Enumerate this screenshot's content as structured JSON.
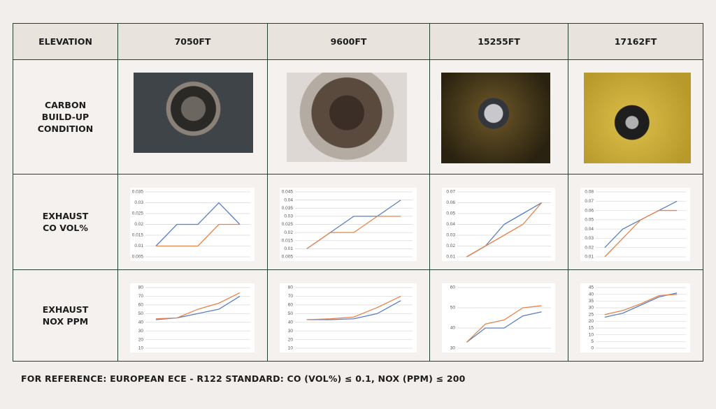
{
  "table": {
    "header": [
      "ELEVATION",
      "7050FT",
      "9600FT",
      "15255FT",
      "17162FT"
    ],
    "row_labels": [
      "CARBON BUILD-UP CONDITION",
      "EXHAUST CO VOL%",
      "EXHAUST NOX PPM"
    ]
  },
  "chart_data": [
    {
      "type": "line",
      "categories": [
        null,
        null,
        null,
        null,
        null
      ],
      "ylim": [
        0.005,
        0.035
      ],
      "yticks": [
        0.005,
        0.01,
        0.015,
        0.02,
        0.025,
        0.03,
        0.035
      ],
      "grid": true,
      "series": [
        {
          "color": "#5b7fc0",
          "values": [
            0.01,
            0.02,
            0.02,
            0.03,
            0.02
          ]
        },
        {
          "color": "#e6834a",
          "values": [
            0.01,
            0.01,
            0.01,
            0.02,
            0.02
          ]
        }
      ]
    },
    {
      "type": "line",
      "categories": [
        null,
        null,
        null,
        null,
        null
      ],
      "ylim": [
        0.005,
        0.045
      ],
      "yticks": [
        0.005,
        0.01,
        0.015,
        0.02,
        0.025,
        0.03,
        0.035,
        0.04,
        0.045
      ],
      "grid": true,
      "series": [
        {
          "color": "#5b7fc0",
          "values": [
            0.01,
            0.02,
            0.03,
            0.03,
            0.04
          ]
        },
        {
          "color": "#e6834a",
          "values": [
            0.01,
            0.02,
            0.02,
            0.03,
            0.03
          ]
        }
      ]
    },
    {
      "type": "line",
      "categories": [
        null,
        null,
        null,
        null,
        null
      ],
      "ylim": [
        0.01,
        0.07
      ],
      "yticks": [
        0.01,
        0.02,
        0.03,
        0.04,
        0.05,
        0.06,
        0.07
      ],
      "grid": true,
      "series": [
        {
          "color": "#5b7fc0",
          "values": [
            0.01,
            0.02,
            0.04,
            0.05,
            0.06
          ]
        },
        {
          "color": "#e6834a",
          "values": [
            0.01,
            0.02,
            0.03,
            0.04,
            0.06
          ]
        }
      ]
    },
    {
      "type": "line",
      "categories": [
        null,
        null,
        null,
        null,
        null
      ],
      "ylim": [
        0.01,
        0.08
      ],
      "yticks": [
        0.01,
        0.02,
        0.03,
        0.04,
        0.05,
        0.06,
        0.07,
        0.08
      ],
      "grid": true,
      "series": [
        {
          "color": "#5b7fc0",
          "values": [
            0.02,
            0.04,
            0.05,
            0.06,
            0.07
          ]
        },
        {
          "color": "#e6834a",
          "values": [
            0.01,
            0.03,
            0.05,
            0.06,
            0.06
          ]
        }
      ]
    },
    {
      "type": "line",
      "categories": [
        null,
        null,
        null,
        null,
        null
      ],
      "ylim": [
        10,
        80
      ],
      "yticks": [
        10,
        20,
        30,
        40,
        50,
        60,
        70,
        80
      ],
      "grid": true,
      "series": [
        {
          "color": "#5b7fc0",
          "values": [
            43,
            45,
            50,
            55,
            70
          ]
        },
        {
          "color": "#e6834a",
          "values": [
            44,
            45,
            55,
            62,
            74
          ]
        }
      ]
    },
    {
      "type": "line",
      "categories": [
        null,
        null,
        null,
        null,
        null
      ],
      "ylim": [
        10,
        80
      ],
      "yticks": [
        10,
        20,
        30,
        40,
        50,
        60,
        70,
        80
      ],
      "grid": true,
      "series": [
        {
          "color": "#5b7fc0",
          "values": [
            43,
            43,
            44,
            50,
            65
          ]
        },
        {
          "color": "#e6834a",
          "values": [
            43,
            44,
            46,
            57,
            70
          ]
        }
      ]
    },
    {
      "type": "line",
      "categories": [
        null,
        null,
        null,
        null,
        null
      ],
      "ylim": [
        30,
        60
      ],
      "yticks": [
        30,
        40,
        50,
        60
      ],
      "grid": true,
      "series": [
        {
          "color": "#5b7fc0",
          "values": [
            33,
            40,
            40,
            46,
            48
          ]
        },
        {
          "color": "#e6834a",
          "values": [
            33,
            42,
            44,
            50,
            51
          ]
        }
      ]
    },
    {
      "type": "line",
      "categories": [
        null,
        null,
        null,
        null,
        null
      ],
      "ylim": [
        0,
        45
      ],
      "yticks": [
        0,
        5,
        10,
        15,
        20,
        25,
        30,
        35,
        40,
        45
      ],
      "grid": true,
      "series": [
        {
          "color": "#5b7fc0",
          "values": [
            23,
            26,
            32,
            38,
            41
          ]
        },
        {
          "color": "#e6834a",
          "values": [
            25,
            28,
            33,
            39,
            40
          ]
        }
      ]
    }
  ],
  "footnote": "FOR REFERENCE: EUROPEAN ECE - R122 STANDARD: CO (VOL%) ≤ 0.1, NOX (PPM) ≤ 200"
}
